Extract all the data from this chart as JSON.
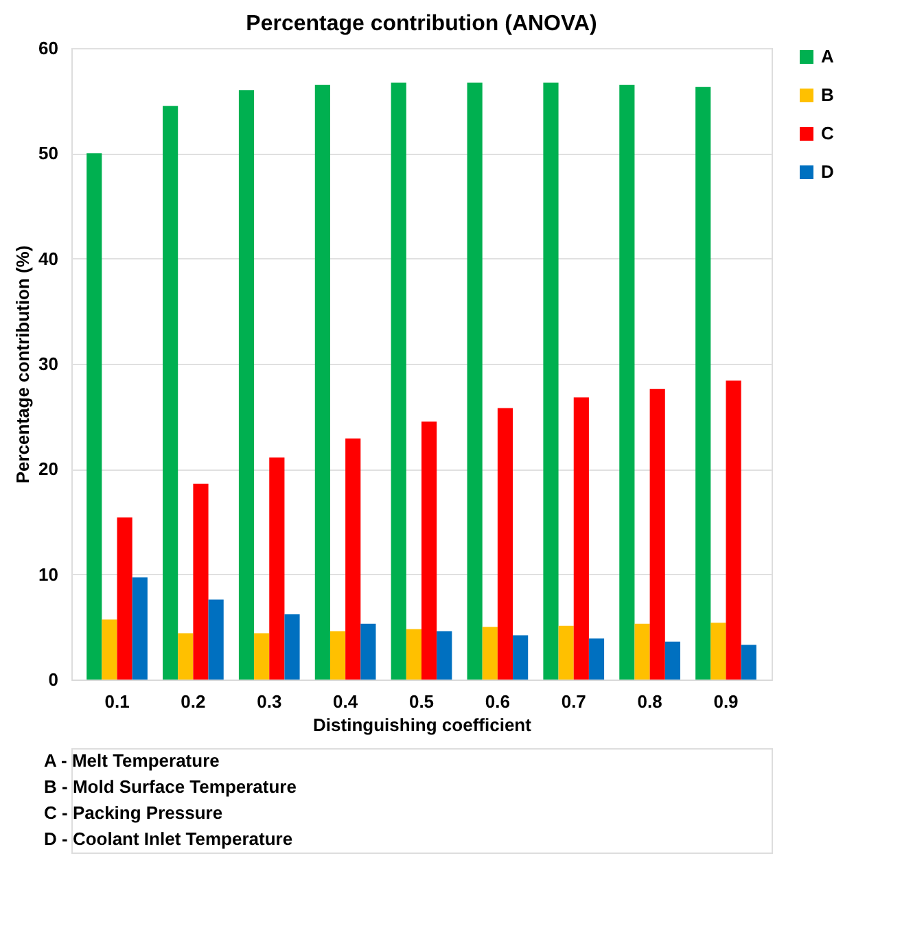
{
  "chart_data": {
    "type": "bar",
    "title": "Percentage contribution (ANOVA)",
    "xlabel": "Distinguishing coefficient",
    "ylabel": "Percentage contribution (%)",
    "categories": [
      "0.1",
      "0.2",
      "0.3",
      "0.4",
      "0.5",
      "0.6",
      "0.7",
      "0.8",
      "0.9"
    ],
    "series": [
      {
        "name": "A",
        "color": "#00b050",
        "values": [
          50.0,
          54.5,
          56.0,
          56.5,
          56.7,
          56.7,
          56.7,
          56.5,
          56.3
        ]
      },
      {
        "name": "B",
        "color": "#ffc000",
        "values": [
          5.7,
          4.4,
          4.4,
          4.6,
          4.8,
          5.0,
          5.1,
          5.3,
          5.4
        ]
      },
      {
        "name": "C",
        "color": "#ff0000",
        "values": [
          15.4,
          18.6,
          21.1,
          22.9,
          24.5,
          25.8,
          26.8,
          27.6,
          28.4
        ]
      },
      {
        "name": "D",
        "color": "#0070c0",
        "values": [
          9.7,
          7.6,
          6.2,
          5.3,
          4.6,
          4.2,
          3.9,
          3.6,
          3.3
        ]
      }
    ],
    "ylim": [
      0,
      60
    ],
    "yticks": [
      0,
      10,
      20,
      30,
      40,
      50,
      60
    ],
    "grid": "y",
    "legend": "right",
    "annotations": [
      "A - Melt Temperature",
      "B - Mold Surface Temperature",
      "C - Packing Pressure",
      "D - Coolant Inlet Temperature"
    ]
  }
}
